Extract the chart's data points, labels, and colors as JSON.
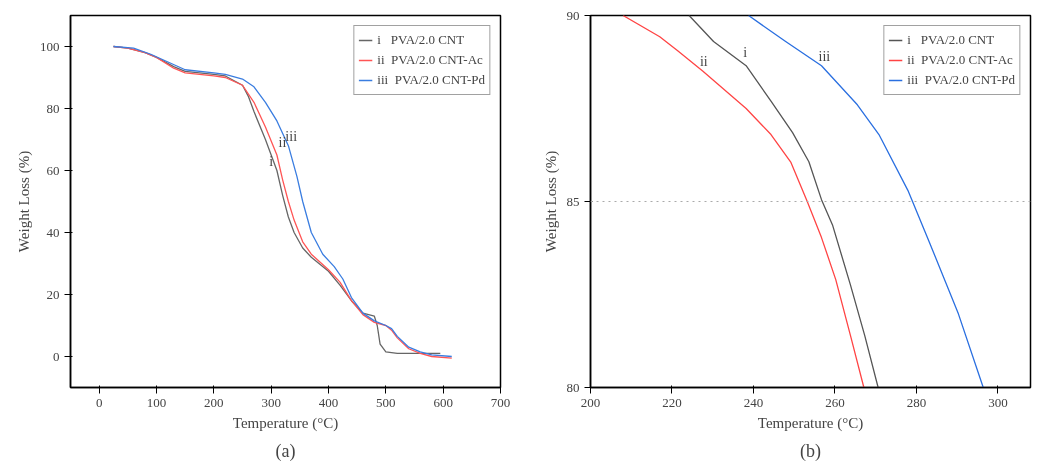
{
  "chart_data": [
    {
      "type": "line",
      "xlabel": "Temperature (°C)",
      "ylabel": "Weight Loss (%)",
      "xlim": [
        -50,
        700
      ],
      "ylim": [
        -10,
        110
      ],
      "xticks": [
        0,
        100,
        200,
        300,
        400,
        500,
        600,
        700
      ],
      "yticks": [
        0,
        20,
        40,
        60,
        80,
        100
      ],
      "grid": false,
      "legend": "top right",
      "series": [
        {
          "name": "i   PVA/2.0 CNT",
          "color": "#666666",
          "x": [
            25,
            50,
            80,
            100,
            130,
            150,
            200,
            220,
            250,
            260,
            270,
            290,
            310,
            320,
            330,
            340,
            355,
            370,
            400,
            420,
            440,
            460,
            480,
            485,
            490,
            500,
            520,
            560,
            595
          ],
          "values": [
            100,
            99.5,
            98,
            96.5,
            93.5,
            92,
            91,
            90.5,
            87.5,
            84,
            79,
            70,
            60,
            52,
            45,
            40,
            35,
            32,
            27.5,
            23,
            18,
            14,
            13,
            10,
            4,
            1.5,
            1,
            1,
            1
          ]
        },
        {
          "name": "ii  PVA/2.0 CNT-Ac",
          "color": "#ff5555",
          "x": [
            25,
            50,
            80,
            100,
            130,
            150,
            200,
            220,
            250,
            270,
            290,
            310,
            320,
            330,
            340,
            355,
            370,
            400,
            420,
            440,
            460,
            480,
            500,
            510,
            520,
            540,
            560,
            580,
            615
          ],
          "values": [
            100,
            99.5,
            98,
            96.5,
            93,
            91.5,
            90.5,
            90,
            87.5,
            82,
            74,
            65,
            57,
            50,
            44,
            37,
            33,
            28,
            24,
            18,
            13.5,
            11,
            10,
            8.5,
            6,
            2.5,
            1,
            0,
            -0.5
          ]
        },
        {
          "name": "iii  PVA/2.0 CNT-Pd",
          "color": "#3a7de0",
          "x": [
            25,
            60,
            90,
            120,
            150,
            200,
            220,
            250,
            270,
            290,
            310,
            330,
            345,
            355,
            370,
            390,
            410,
            425,
            440,
            460,
            480,
            500,
            510,
            520,
            540,
            560,
            580,
            615
          ],
          "values": [
            100,
            99.5,
            97.5,
            95,
            92.5,
            91.5,
            91,
            89.5,
            87,
            82,
            76,
            68,
            58,
            50,
            40,
            33,
            29,
            25,
            19,
            14,
            11.5,
            10,
            9,
            6.5,
            3,
            1.5,
            0.5,
            0
          ]
        }
      ],
      "annotations": [
        {
          "text": "i",
          "x": 302,
          "y": 60
        },
        {
          "text": "ii",
          "x": 318,
          "y": 66
        },
        {
          "text": "iii",
          "x": 330,
          "y": 68
        },
        "(a)"
      ]
    },
    {
      "type": "line",
      "xlabel": "Temperature (°C)",
      "ylabel": "Weight Loss (%)",
      "xlim": [
        200,
        308
      ],
      "ylim": [
        80,
        90
      ],
      "xticks": [
        200,
        220,
        240,
        260,
        280,
        300
      ],
      "yticks": [
        80,
        85,
        90
      ],
      "grid": false,
      "legend": "top right",
      "ref_lines": [
        {
          "axis": "y",
          "value": 85,
          "color": "#aaaaaa",
          "line_style": "dotted"
        }
      ],
      "series": [
        {
          "name": "i   PVA/2.0 CNT",
          "color": "#555555",
          "x": [
            224.2,
            230.2,
            238.2,
            244.3,
            249.6,
            253.6,
            256.7,
            259.4,
            263.8,
            267.3,
            270.6
          ],
          "values": [
            90,
            89.3,
            88.65,
            87.7,
            86.85,
            86.07,
            85.05,
            84.37,
            82.76,
            81.4,
            80
          ]
        },
        {
          "name": "ii  PVA/2.0 CNT-Ac",
          "color": "#ff4444",
          "x": [
            208,
            217,
            221.4,
            227.6,
            238.2,
            244.3,
            249.2,
            253.2,
            256.7,
            260.2,
            263.8,
            267.1
          ],
          "values": [
            90,
            89.43,
            89.05,
            88.5,
            87.5,
            86.8,
            86.05,
            85,
            84.03,
            82.9,
            81.4,
            80
          ]
        },
        {
          "name": "iii  PVA/2.0 CNT-Pd",
          "color": "#2a6fe0",
          "x": [
            238.8,
            247.9,
            256.7,
            265.5,
            270.8,
            277.9,
            283.2,
            290.3,
            296.4
          ],
          "values": [
            90,
            89.3,
            88.65,
            87.6,
            86.8,
            85.3,
            83.9,
            81.98,
            80
          ]
        }
      ],
      "annotations": [
        {
          "text": "ii",
          "x": 227.6,
          "y": 88.5
        },
        {
          "text": "i",
          "x": 238.2,
          "y": 88.75
        },
        {
          "text": "iii",
          "x": 256.7,
          "y": 88.65
        },
        "(b)"
      ]
    }
  ]
}
